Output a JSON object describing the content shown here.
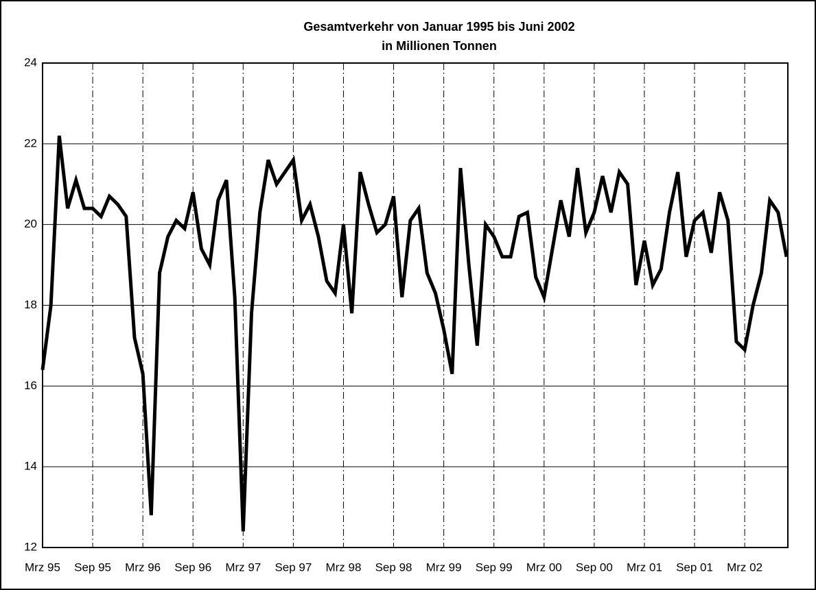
{
  "chart_data": {
    "type": "line",
    "title": "Gesamtverkehr von Januar 1995 bis Juni 2002",
    "subtitle": "in Millionen Tonnen",
    "categories": [
      "Mrz 95",
      null,
      null,
      null,
      null,
      null,
      "Sep 95",
      null,
      null,
      null,
      null,
      null,
      "Mrz 96",
      null,
      null,
      null,
      null,
      null,
      "Sep 96",
      null,
      null,
      null,
      null,
      null,
      "Mrz 97",
      null,
      null,
      null,
      null,
      null,
      "Sep 97",
      null,
      null,
      null,
      null,
      null,
      "Mrz 98",
      null,
      null,
      null,
      null,
      null,
      "Sep 98",
      null,
      null,
      null,
      null,
      null,
      "Mrz 99",
      null,
      null,
      null,
      null,
      null,
      "Sep 99",
      null,
      null,
      null,
      null,
      null,
      "Mrz 00",
      null,
      null,
      null,
      null,
      null,
      "Sep 00",
      null,
      null,
      null,
      null,
      null,
      "Mrz 01",
      null,
      null,
      null,
      null,
      null,
      "Sep 01",
      null,
      null,
      null,
      null,
      null,
      "Mrz 02",
      null,
      null,
      null,
      null,
      null
    ],
    "series": [
      {
        "color": "#000000",
        "values": [
          16.4,
          18.0,
          22.2,
          20.4,
          21.1,
          20.4,
          20.4,
          20.2,
          20.7,
          20.5,
          20.2,
          17.2,
          16.3,
          12.8,
          18.8,
          19.7,
          20.1,
          19.9,
          20.8,
          19.4,
          19.0,
          20.6,
          21.1,
          18.2,
          12.4,
          17.8,
          20.3,
          21.6,
          21.0,
          21.3,
          21.6,
          20.1,
          20.5,
          19.7,
          18.6,
          18.3,
          20.0,
          17.8,
          21.3,
          20.5,
          19.8,
          20.0,
          20.7,
          18.2,
          20.1,
          20.4,
          18.8,
          18.3,
          17.4,
          16.3,
          21.4,
          19.0,
          17.0,
          20.0,
          19.7,
          19.2,
          19.2,
          20.2,
          20.3,
          18.7,
          18.2,
          19.4,
          20.6,
          19.7,
          21.4,
          19.8,
          20.3,
          21.2,
          20.3,
          21.3,
          21.0,
          18.5,
          19.6,
          18.5,
          18.9,
          20.3,
          21.3,
          19.2,
          20.1,
          20.3,
          19.3,
          20.8,
          20.1,
          17.1,
          16.9,
          18.0,
          18.8,
          20.6,
          20.3,
          19.2
        ]
      }
    ],
    "ylim": [
      12,
      24
    ],
    "yticks": [
      12,
      14,
      16,
      18,
      20,
      22,
      24
    ],
    "grid": true
  }
}
